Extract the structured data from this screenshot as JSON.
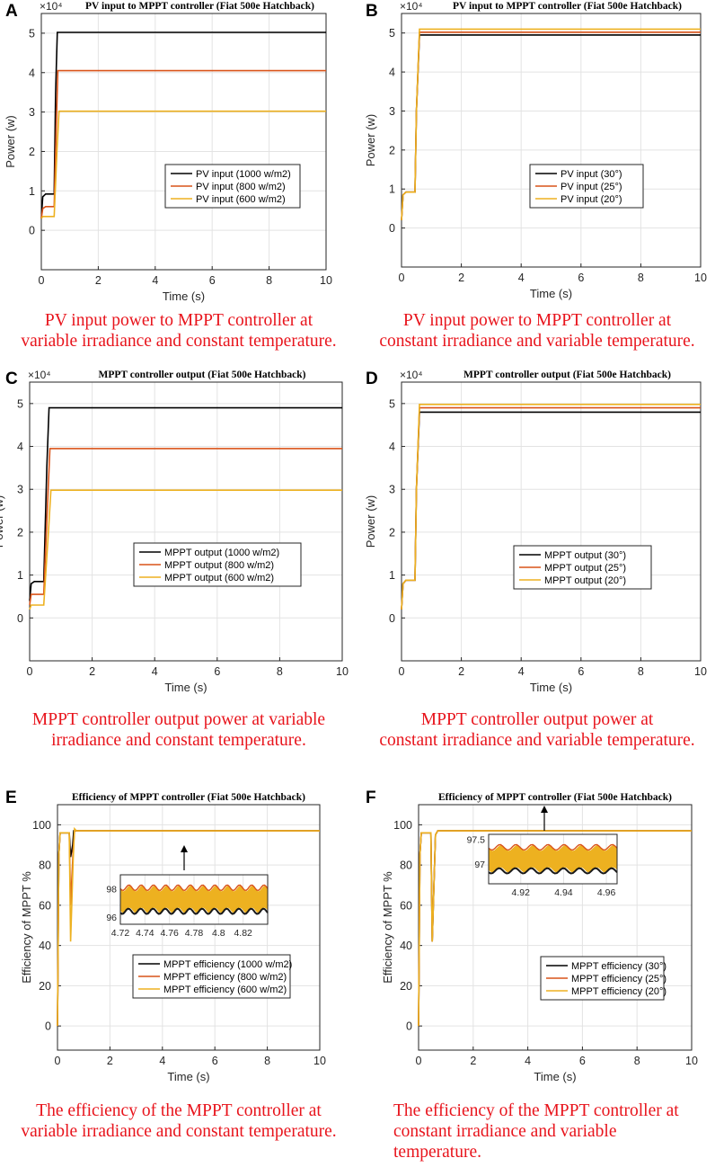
{
  "panels": [
    {
      "letter": "A",
      "caption_lines": [
        "PV input power to MPPT controller at",
        "variable irradiance and constant temperature."
      ],
      "chart_data": {
        "type": "line",
        "title": "PV input to MPPT controller (Fiat 500e Hatchback)",
        "xlabel": "Time (s)",
        "ylabel": "Power (w)",
        "exponent_label": "×10⁴",
        "xlim": [
          0,
          10
        ],
        "ylim": [
          -1,
          5.5
        ],
        "xticks": [
          0,
          2,
          4,
          6,
          8,
          10
        ],
        "yticks": [
          0,
          1,
          2,
          3,
          4,
          5
        ],
        "legend": "center-right",
        "series": [
          {
            "name": "PV input (1000 w/m2)",
            "color": "#000000",
            "x": [
              0,
              0.05,
              0.15,
              0.45,
              0.5,
              0.56,
              0.62,
              10
            ],
            "y": [
              0.3,
              0.85,
              0.92,
              0.92,
              3.5,
              5.02,
              5.02,
              5.02
            ]
          },
          {
            "name": "PV input (800 w/m2)",
            "color": "#d95319",
            "x": [
              0,
              0.05,
              0.15,
              0.45,
              0.52,
              0.58,
              0.64,
              10
            ],
            "y": [
              0.3,
              0.55,
              0.6,
              0.6,
              2.5,
              4.05,
              4.05,
              4.05
            ]
          },
          {
            "name": "PV input (600 w/m2)",
            "color": "#edb120",
            "x": [
              0,
              0.05,
              0.15,
              0.45,
              0.55,
              0.62,
              0.68,
              10
            ],
            "y": [
              0.3,
              0.35,
              0.35,
              0.35,
              2.0,
              3.02,
              3.02,
              3.02
            ]
          }
        ]
      }
    },
    {
      "letter": "B",
      "caption_lines": [
        "PV input power to MPPT controller at",
        "constant irradiance and variable temperature."
      ],
      "chart_data": {
        "type": "line",
        "title": "PV input to MPPT controller (Fiat 500e Hatchback)",
        "xlabel": "Time (s)",
        "ylabel": "Power (w)",
        "exponent_label": "×10⁴",
        "xlim": [
          0,
          10
        ],
        "ylim": [
          -1,
          5.5
        ],
        "xticks": [
          0,
          2,
          4,
          6,
          8,
          10
        ],
        "yticks": [
          0,
          1,
          2,
          3,
          4,
          5
        ],
        "legend": "center-left",
        "series": [
          {
            "name": "PV input (30°)",
            "color": "#000000",
            "x": [
              0,
              0.05,
              0.15,
              0.45,
              0.5,
              0.6,
              10
            ],
            "y": [
              0.2,
              0.85,
              0.92,
              0.92,
              3.0,
              4.95,
              4.95
            ]
          },
          {
            "name": "PV input (25°)",
            "color": "#d95319",
            "x": [
              0,
              0.05,
              0.15,
              0.45,
              0.5,
              0.6,
              10
            ],
            "y": [
              0.2,
              0.85,
              0.92,
              0.92,
              3.0,
              5.02,
              5.02
            ]
          },
          {
            "name": "PV input (20°)",
            "color": "#edb120",
            "x": [
              0,
              0.05,
              0.15,
              0.45,
              0.5,
              0.6,
              10
            ],
            "y": [
              0.2,
              0.85,
              0.92,
              0.92,
              3.0,
              5.1,
              5.1
            ]
          }
        ]
      }
    },
    {
      "letter": "C",
      "caption_lines": [
        "MPPT controller output power at variable",
        "irradiance and constant temperature."
      ],
      "chart_data": {
        "type": "line",
        "title": "MPPT controller output (Fiat 500e Hatchback)",
        "xlabel": "Time (s)",
        "ylabel": "Power (w)",
        "exponent_label": "×10⁴",
        "xlim": [
          0,
          10
        ],
        "ylim": [
          -1,
          5.5
        ],
        "xticks": [
          0,
          2,
          4,
          6,
          8,
          10
        ],
        "yticks": [
          0,
          1,
          2,
          3,
          4,
          5
        ],
        "legend": "lower-center",
        "series": [
          {
            "name": "MPPT output (1000 w/m2)",
            "color": "#000000",
            "x": [
              0,
              0.05,
              0.15,
              0.45,
              0.55,
              0.62,
              10
            ],
            "y": [
              0.4,
              0.8,
              0.85,
              0.85,
              3.5,
              4.9,
              4.9
            ]
          },
          {
            "name": "MPPT output (800 w/m2)",
            "color": "#d95319",
            "x": [
              0,
              0.05,
              0.15,
              0.45,
              0.58,
              0.65,
              10
            ],
            "y": [
              0.3,
              0.55,
              0.55,
              0.55,
              2.8,
              3.95,
              3.95
            ]
          },
          {
            "name": "MPPT output (600 w/m2)",
            "color": "#edb120",
            "x": [
              0,
              0.05,
              0.15,
              0.45,
              0.6,
              0.68,
              10
            ],
            "y": [
              0.2,
              0.3,
              0.3,
              0.3,
              2.0,
              2.98,
              2.98
            ]
          }
        ]
      }
    },
    {
      "letter": "D",
      "caption_lines": [
        "MPPT controller output power at",
        "constant irradiance and variable temperature."
      ],
      "chart_data": {
        "type": "line",
        "title": "MPPT controller output (Fiat 500e Hatchback)",
        "xlabel": "Time (s)",
        "ylabel": "Power (w)",
        "exponent_label": "×10⁴",
        "xlim": [
          0,
          10
        ],
        "ylim": [
          -1,
          5.5
        ],
        "xticks": [
          0,
          2,
          4,
          6,
          8,
          10
        ],
        "yticks": [
          0,
          1,
          2,
          3,
          4,
          5
        ],
        "legend": "center-left",
        "series": [
          {
            "name": "MPPT output (30°)",
            "color": "#000000",
            "x": [
              0,
              0.05,
              0.15,
              0.45,
              0.5,
              0.6,
              10
            ],
            "y": [
              0.2,
              0.8,
              0.88,
              0.88,
              3.0,
              4.8,
              4.8
            ]
          },
          {
            "name": "MPPT output (25°)",
            "color": "#d95319",
            "x": [
              0,
              0.05,
              0.15,
              0.45,
              0.5,
              0.6,
              10
            ],
            "y": [
              0.2,
              0.8,
              0.88,
              0.88,
              3.0,
              4.9,
              4.9
            ]
          },
          {
            "name": "MPPT output (20°)",
            "color": "#edb120",
            "x": [
              0,
              0.05,
              0.15,
              0.45,
              0.5,
              0.6,
              10
            ],
            "y": [
              0.2,
              0.8,
              0.88,
              0.88,
              3.0,
              4.98,
              4.98
            ]
          }
        ]
      }
    },
    {
      "letter": "E",
      "caption_lines": [
        "The efficiency of the MPPT controller at",
        "variable irradiance and constant temperature."
      ],
      "chart_data": {
        "type": "line",
        "title": "Efficiency of MPPT controller (Fiat 500e Hatchback)",
        "xlabel": "Time (s)",
        "ylabel": "Efficiency of MPPT %",
        "xlim": [
          0,
          10
        ],
        "ylim": [
          -12,
          110
        ],
        "xticks": [
          0,
          2,
          4,
          6,
          8,
          10
        ],
        "yticks": [
          0,
          20,
          40,
          60,
          80,
          100
        ],
        "legend": "lower-center",
        "series": [
          {
            "name": "MPPT efficiency (1000 w/m2)",
            "color": "#000000",
            "x": [
              0,
              0.05,
              0.1,
              0.45,
              0.5,
              0.58,
              0.62,
              0.7,
              10
            ],
            "y": [
              0,
              85,
              96,
              96,
              84,
              90,
              97,
              97,
              97
            ]
          },
          {
            "name": "MPPT efficiency (800 w/m2)",
            "color": "#d95319",
            "x": [
              0,
              0.05,
              0.1,
              0.45,
              0.5,
              0.6,
              0.65,
              0.72,
              10
            ],
            "y": [
              0,
              85,
              96,
              96,
              60,
              88,
              97,
              97,
              97
            ]
          },
          {
            "name": "MPPT efficiency (600 w/m2)",
            "color": "#edb120",
            "x": [
              0,
              0.05,
              0.1,
              0.45,
              0.5,
              0.6,
              0.65,
              0.72,
              10
            ],
            "y": [
              0,
              85,
              96,
              96,
              42,
              83,
              98,
              97,
              97
            ]
          }
        ],
        "inset": {
          "xlim": [
            4.72,
            4.84
          ],
          "ylim": [
            95.5,
            99
          ],
          "xticks": [
            4.72,
            4.74,
            4.76,
            4.78,
            4.8,
            4.82
          ],
          "yticks": [
            96,
            98
          ]
        }
      }
    },
    {
      "letter": "F",
      "caption_lines": [
        "The efficiency of the MPPT controller at",
        "constant irradiance and variable",
        "temperature."
      ],
      "chart_data": {
        "type": "line",
        "title": "Efficiency of MPPT controller (Fiat 500e Hatchback)",
        "xlabel": "Time (s)",
        "ylabel": "Efficiency of MPPT %",
        "xlim": [
          0,
          10
        ],
        "ylim": [
          -12,
          110
        ],
        "xticks": [
          0,
          2,
          4,
          6,
          8,
          10
        ],
        "yticks": [
          0,
          20,
          40,
          60,
          80,
          100
        ],
        "legend": "lower-right",
        "series": [
          {
            "name": "MPPT efficiency (30°)",
            "color": "#000000",
            "x": [
              0,
              0.05,
              0.1,
              0.45,
              0.5,
              0.62,
              0.7,
              10
            ],
            "y": [
              0,
              85,
              96,
              96,
              42,
              95,
              97,
              97
            ]
          },
          {
            "name": "MPPT efficiency (25°)",
            "color": "#d95319",
            "x": [
              0,
              0.05,
              0.1,
              0.45,
              0.5,
              0.62,
              0.7,
              10
            ],
            "y": [
              0,
              85,
              96,
              96,
              42,
              95,
              97,
              97
            ]
          },
          {
            "name": "MPPT efficiency (20°)",
            "color": "#edb120",
            "x": [
              0,
              0.05,
              0.1,
              0.45,
              0.5,
              0.62,
              0.7,
              10
            ],
            "y": [
              0,
              85,
              96,
              96,
              42,
              95,
              97,
              97
            ]
          }
        ],
        "inset": {
          "xlim": [
            4.905,
            4.965
          ],
          "ylim": [
            96.6,
            97.6
          ],
          "xticks": [
            4.92,
            4.94,
            4.96
          ],
          "yticks": [
            97,
            97.5
          ]
        }
      }
    }
  ]
}
